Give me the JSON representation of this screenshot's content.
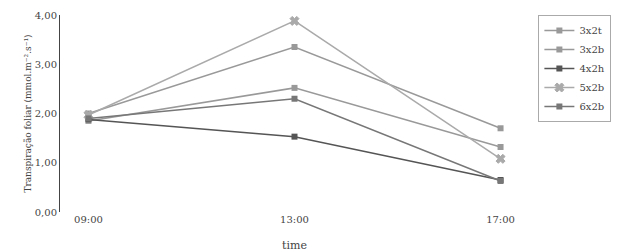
{
  "chart_data": {
    "type": "line",
    "xlabel": "time",
    "ylabel": "Transpiração foliar (mmol.m⁻².s⁻¹)",
    "categories": [
      "09:00",
      "13:00",
      "17:00"
    ],
    "series": [
      {
        "name": "3x2t",
        "color": "#999999",
        "marker": "square",
        "line_style": "solid",
        "values": [
          2.0,
          3.35,
          1.7
        ]
      },
      {
        "name": "3x2b",
        "color": "#999999",
        "marker": "square",
        "line_style": "solid",
        "values": [
          1.85,
          2.52,
          1.32
        ]
      },
      {
        "name": "4x2h",
        "color": "#555555",
        "marker": "square",
        "line_style": "solid",
        "values": [
          1.88,
          1.53,
          0.65
        ]
      },
      {
        "name": "5x2b",
        "color": "#aaaaaa",
        "marker": "x",
        "line_style": "solid",
        "values": [
          1.97,
          3.88,
          1.08
        ]
      },
      {
        "name": "6x2b",
        "color": "#777777",
        "marker": "square",
        "line_style": "solid",
        "values": [
          1.9,
          2.3,
          0.63
        ]
      }
    ],
    "ylim": [
      0.0,
      4.0
    ],
    "yticks": [
      {
        "value": 0.0,
        "label": "0,00"
      },
      {
        "value": 1.0,
        "label": "1,00"
      },
      {
        "value": 2.0,
        "label": "2,00"
      },
      {
        "value": 3.0,
        "label": "3,00"
      },
      {
        "value": 4.0,
        "label": "4,00"
      }
    ],
    "grid": false,
    "legend": "upper right"
  }
}
